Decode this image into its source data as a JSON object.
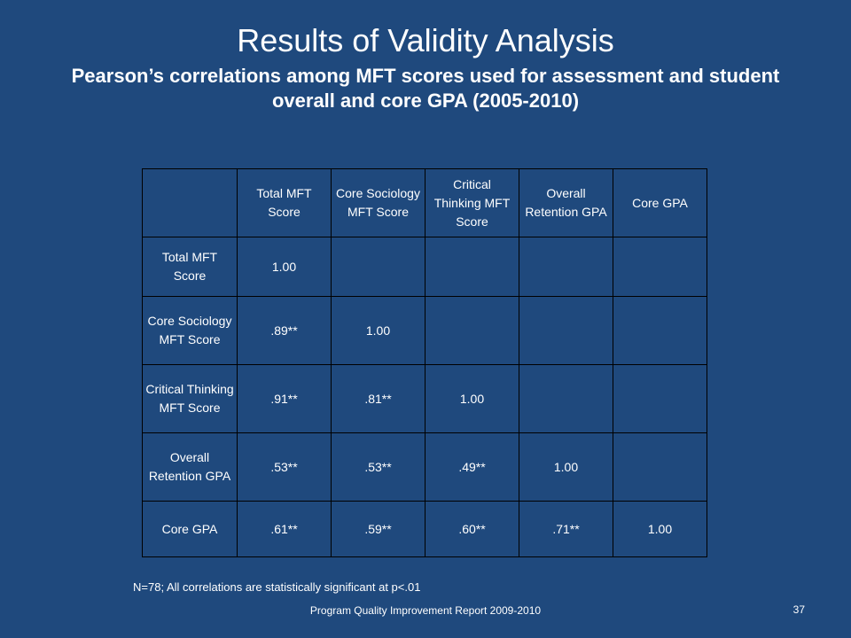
{
  "slide": {
    "title": "Results of Validity Analysis",
    "subtitle": "Pearson’s correlations among MFT scores used for assessment and student overall and core GPA (2005-2010)",
    "note": "N=78; All correlations are statistically significant at p<.01",
    "footer": "Program Quality Improvement Report 2009-2010",
    "page_number": "37",
    "background_color": "#1f497d"
  },
  "table": {
    "columns": [
      "",
      "Total MFT Score",
      "Core Sociology MFT Score",
      "Critical Thinking MFT Score",
      "Overall Retention GPA",
      "Core GPA"
    ],
    "rows": [
      {
        "label": "Total MFT Score",
        "values": [
          "1.00",
          "",
          "",
          "",
          ""
        ]
      },
      {
        "label": "Core Sociology MFT Score",
        "values": [
          ".89**",
          "1.00",
          "",
          "",
          ""
        ]
      },
      {
        "label": "Critical Thinking MFT Score",
        "values": [
          ".91**",
          ".81**",
          "1.00",
          "",
          ""
        ]
      },
      {
        "label": "Overall Retention GPA",
        "values": [
          ".53**",
          ".53**",
          ".49**",
          "1.00",
          ""
        ]
      },
      {
        "label": "Core GPA",
        "values": [
          ".61**",
          ".59**",
          ".60**",
          ".71**",
          "1.00"
        ]
      }
    ]
  }
}
